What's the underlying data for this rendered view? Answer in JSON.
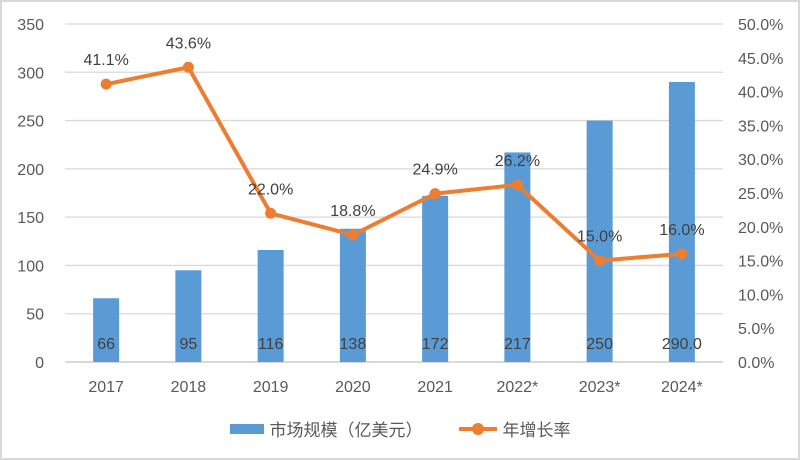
{
  "chart_data": {
    "type": "bar+line",
    "categories": [
      "2017",
      "2018",
      "2019",
      "2020",
      "2021",
      "2022*",
      "2023*",
      "2024*"
    ],
    "series": [
      {
        "name": "市场规模（亿美元）",
        "type": "bar",
        "axis": "left",
        "color": "#5b9bd5",
        "values": [
          66,
          95,
          116,
          138,
          172,
          217,
          250,
          290.0
        ],
        "labels": [
          "66",
          "95",
          "116",
          "138",
          "172",
          "217",
          "250",
          "290.0"
        ]
      },
      {
        "name": "年增长率",
        "type": "line",
        "axis": "right",
        "color": "#ed7d31",
        "values": [
          41.1,
          43.6,
          22.0,
          18.8,
          24.9,
          26.2,
          15.0,
          16.0
        ],
        "labels": [
          "41.1%",
          "43.6%",
          "22.0%",
          "18.8%",
          "24.9%",
          "26.2%",
          "15.0%",
          "16.0%"
        ]
      }
    ],
    "y_left": {
      "ylim": [
        0,
        350
      ],
      "ticks": [
        "0",
        "50",
        "100",
        "150",
        "200",
        "250",
        "300",
        "350"
      ]
    },
    "y_right": {
      "ylim": [
        0,
        50
      ],
      "ticks": [
        "0.0%",
        "5.0%",
        "10.0%",
        "15.0%",
        "20.0%",
        "25.0%",
        "30.0%",
        "35.0%",
        "40.0%",
        "45.0%",
        "50.0%"
      ]
    },
    "grid": true,
    "legend": "bottom"
  }
}
